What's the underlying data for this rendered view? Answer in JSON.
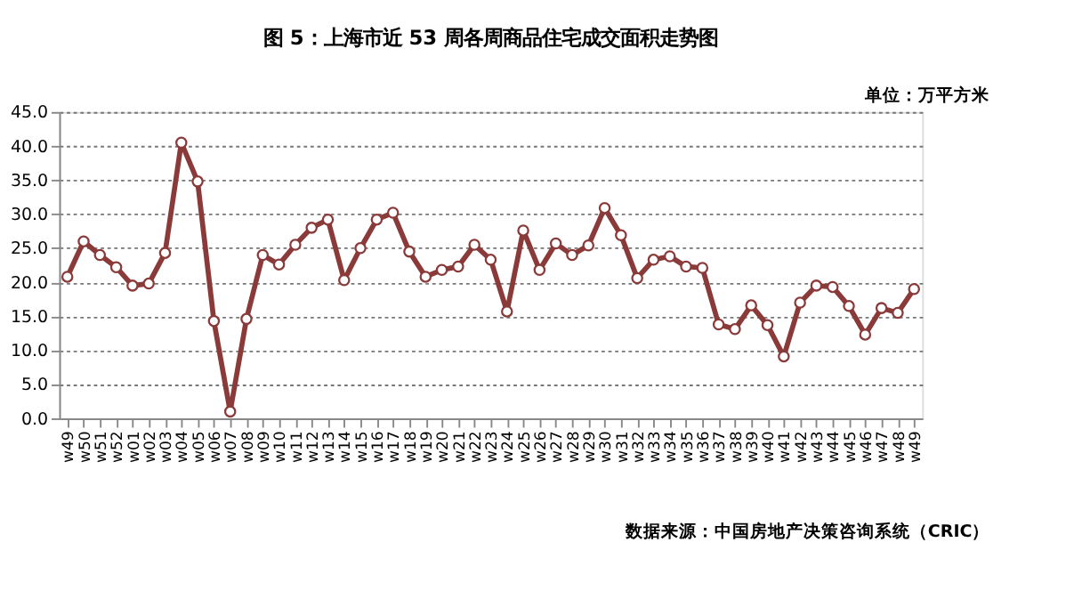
{
  "chart_data": {
    "type": "line",
    "title": "图 5：上海市近 53 周各周商品住宅成交面积走势图",
    "annotations": [
      "单位：万平方米",
      "数据来源：中国房地产决策咨询系统（CRIC）"
    ],
    "categories": [
      "w49",
      "w50",
      "w51",
      "w52",
      "w01",
      "w02",
      "w03",
      "w04",
      "w05",
      "w06",
      "w07",
      "w08",
      "w09",
      "w10",
      "w11",
      "w12",
      "w13",
      "w14",
      "w15",
      "w16",
      "w17",
      "w18",
      "w19",
      "w20",
      "w21",
      "w22",
      "w23",
      "w24",
      "w25",
      "w26",
      "w27",
      "w28",
      "w29",
      "w30",
      "w31",
      "w32",
      "w33",
      "w34",
      "w35",
      "w36",
      "w37",
      "w38",
      "w39",
      "w40",
      "w41",
      "w42",
      "w43",
      "w44",
      "w45",
      "w46",
      "w47",
      "w48",
      "w49"
    ],
    "series": [
      {
        "color": "#8b3a3a",
        "values": [
          20.8,
          26.0,
          24.0,
          22.2,
          19.5,
          19.8,
          24.3,
          40.5,
          34.8,
          14.3,
          1.0,
          14.6,
          24.0,
          22.6,
          25.5,
          28.0,
          29.2,
          20.3,
          25.0,
          29.2,
          30.2,
          24.5,
          20.8,
          21.8,
          22.3,
          25.5,
          23.3,
          15.7,
          27.6,
          21.8,
          25.7,
          24.0,
          25.4,
          30.9,
          26.9,
          20.6,
          23.3,
          23.8,
          22.3,
          22.1,
          13.8,
          13.1,
          16.6,
          13.7,
          9.1,
          17.0,
          19.5,
          19.3,
          16.5,
          12.3,
          16.2,
          15.5,
          19.0
        ]
      }
    ],
    "ylim": [
      0,
      45
    ],
    "yticks": [
      {
        "value": 0,
        "label": "0.0"
      },
      {
        "value": 5,
        "label": "5.0"
      },
      {
        "value": 10,
        "label": "10.0"
      },
      {
        "value": 15,
        "label": "15.0"
      },
      {
        "value": 20,
        "label": "20.0"
      },
      {
        "value": 25,
        "label": "25.0"
      },
      {
        "value": 30,
        "label": "30.0"
      },
      {
        "value": 35,
        "label": "35.0"
      },
      {
        "value": 40,
        "label": "40.0"
      },
      {
        "value": 45,
        "label": "45.0"
      }
    ],
    "grid": "y",
    "legend": false,
    "marker": "circle",
    "line_style": "solid"
  }
}
